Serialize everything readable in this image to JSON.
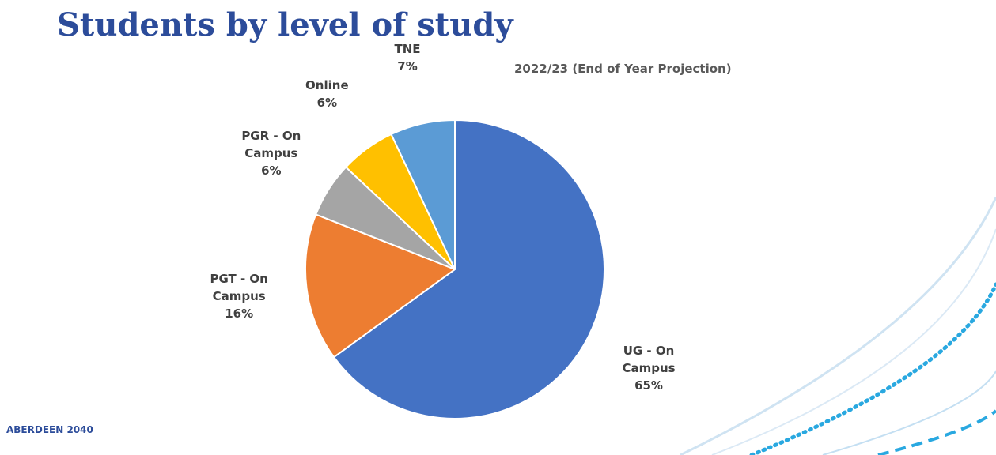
{
  "chart_data": {
    "type": "pie",
    "title": "Students by level of study",
    "subtitle": "2022/23 (End of Year Projection)",
    "categories": [
      "UG - On Campus",
      "PGT - On Campus",
      "PGR - On Campus",
      "Online",
      "TNE"
    ],
    "values": [
      65,
      16,
      6,
      6,
      7
    ],
    "value_labels": [
      "65%",
      "16%",
      "6%",
      "6%",
      "7%"
    ],
    "colors": [
      "#4472c4",
      "#ed7d31",
      "#a5a5a5",
      "#ffc000",
      "#5b9bd5"
    ]
  },
  "footer": "ABERDEEN 2040"
}
